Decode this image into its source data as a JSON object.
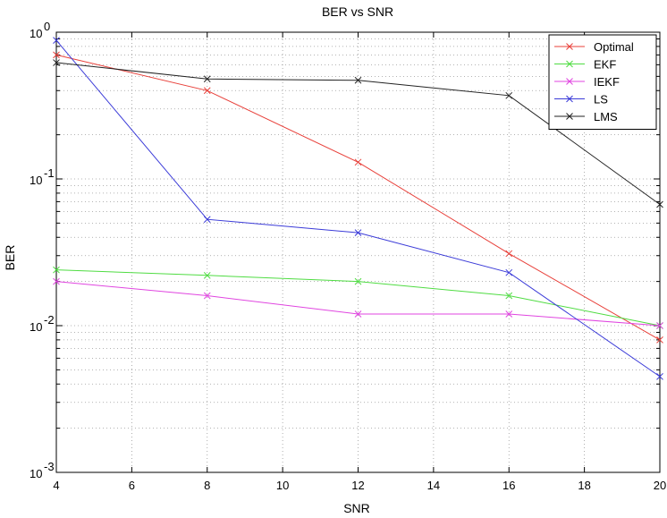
{
  "chart_data": {
    "type": "line",
    "title": "BER vs SNR",
    "xlabel": "SNR",
    "ylabel": "BER",
    "x": [
      4,
      8,
      12,
      16,
      20
    ],
    "xlim": [
      4,
      20
    ],
    "xticks": [
      4,
      6,
      8,
      10,
      12,
      14,
      16,
      18,
      20
    ],
    "ylim": [
      0.001,
      1
    ],
    "yscale": "log",
    "ytick_labels": [
      {
        "base": "10",
        "exp": "0"
      },
      {
        "base": "10",
        "exp": "-1"
      },
      {
        "base": "10",
        "exp": "-2"
      },
      {
        "base": "10",
        "exp": "-3"
      }
    ],
    "grid": true,
    "legend_position": "top-right",
    "marker": "x",
    "series": [
      {
        "name": "Optimal",
        "color": "#e8403a",
        "values": [
          0.7,
          0.4,
          0.13,
          0.031,
          0.008
        ]
      },
      {
        "name": "EKF",
        "color": "#4fdc42",
        "values": [
          0.024,
          0.022,
          0.02,
          0.016,
          0.01
        ]
      },
      {
        "name": "IEKF",
        "color": "#e045e0",
        "values": [
          0.02,
          0.016,
          0.012,
          0.012,
          0.01
        ]
      },
      {
        "name": "LS",
        "color": "#3b3bd8",
        "values": [
          0.88,
          0.053,
          0.043,
          0.023,
          0.0045
        ]
      },
      {
        "name": "LMS",
        "color": "#222222",
        "values": [
          0.62,
          0.48,
          0.47,
          0.37,
          0.067
        ]
      }
    ]
  }
}
